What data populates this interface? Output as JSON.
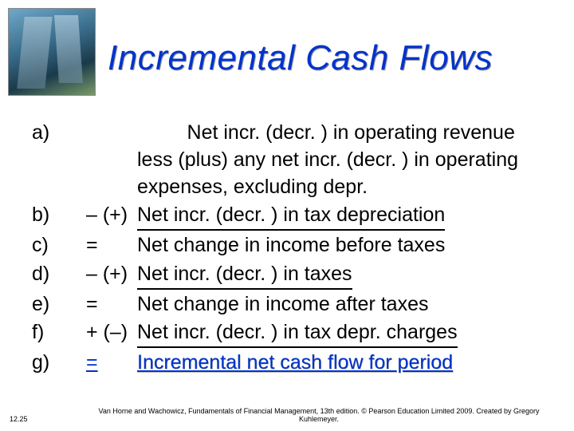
{
  "title": "Incremental Cash Flows",
  "rows": {
    "a": {
      "label": "a)",
      "op": "",
      "text": "Net incr. (decr. ) in operating revenue less (plus) any net incr. (decr. ) in operating expenses, excluding depr."
    },
    "b": {
      "label": "b)",
      "op": "– (+)",
      "text": "Net incr. (decr. ) in tax depreciation"
    },
    "c": {
      "label": "c)",
      "op": "=",
      "text": "Net change in income before taxes"
    },
    "d": {
      "label": "d)",
      "op": "– (+)",
      "text": "Net incr. (decr. ) in taxes"
    },
    "e": {
      "label": "e)",
      "op": "=",
      "text": "Net change in income after taxes"
    },
    "f": {
      "label": "f)",
      "op": "+ (–)",
      "text": "Net incr. (decr. ) in tax depr. charges"
    },
    "g": {
      "label": "g)",
      "op": "=",
      "text": "Incremental net cash flow for period"
    }
  },
  "slide_number": "12.25",
  "credit": "Van Horne and Wachowicz, Fundamentals of Financial Management, 13th edition. © Pearson Education Limited 2009. Created by Gregory Kuhlemeyer.",
  "colors": {
    "title": "#0033cc",
    "final": "#0033cc",
    "text": "#000000",
    "background": "#ffffff"
  }
}
